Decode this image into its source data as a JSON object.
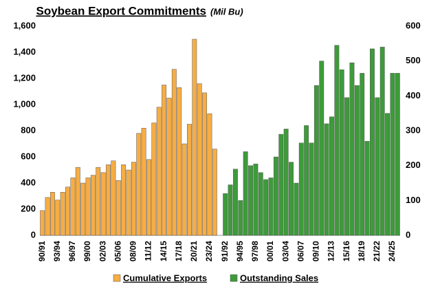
{
  "chart_data": {
    "type": "bar",
    "title": "Soybean Export Commitments",
    "subtitle": "(Mil Bu)",
    "ylim": [
      0,
      1600
    ],
    "yticks": [
      0,
      200,
      400,
      600,
      800,
      {
        "value": 1000,
        "label": "1,000"
      },
      {
        "value": 1200,
        "label": "1,200"
      },
      {
        "value": 1400,
        "label": "1,400"
      },
      {
        "value": 1600,
        "label": "1,600"
      }
    ],
    "y2lim": [
      0,
      600
    ],
    "y2ticks": [
      0,
      100,
      200,
      300,
      400,
      500,
      600
    ],
    "series": [
      {
        "name": "Cumulative Exports",
        "color": "#f6ad45",
        "categories": [
          "90/91",
          null,
          null,
          "93/94",
          null,
          null,
          "96/97",
          null,
          null,
          "99/00",
          null,
          null,
          "02/03",
          null,
          null,
          "05/06",
          null,
          null,
          "08/09",
          null,
          null,
          "11/12",
          null,
          null,
          "14/15",
          null,
          null,
          "17/18",
          null,
          null,
          "20/21",
          null,
          null,
          "23/24",
          null
        ],
        "values": [
          190,
          290,
          330,
          270,
          330,
          370,
          440,
          520,
          400,
          440,
          460,
          520,
          480,
          540,
          570,
          420,
          540,
          500,
          560,
          780,
          820,
          580,
          860,
          980,
          1150,
          1050,
          1270,
          1130,
          700,
          850,
          1500,
          1160,
          1090,
          930,
          660
        ]
      },
      {
        "name": "Outstanding Sales",
        "color": "#3d9b3a",
        "axis": "y2",
        "categories": [
          "91/92",
          null,
          null,
          "94/95",
          null,
          null,
          "97/98",
          null,
          null,
          "00/01",
          null,
          null,
          "03/04",
          null,
          null,
          "06/07",
          null,
          null,
          "09/10",
          null,
          null,
          "12/13",
          null,
          null,
          "15/16",
          null,
          null,
          "18/19",
          null,
          null,
          "21/22",
          null,
          null,
          "24/25",
          null
        ],
        "values": [
          120,
          145,
          190,
          100,
          240,
          200,
          205,
          180,
          160,
          165,
          225,
          290,
          305,
          210,
          150,
          265,
          315,
          265,
          430,
          500,
          320,
          340,
          545,
          475,
          395,
          495,
          430,
          465,
          270,
          535,
          395,
          540,
          350,
          465,
          465
        ]
      }
    ]
  }
}
